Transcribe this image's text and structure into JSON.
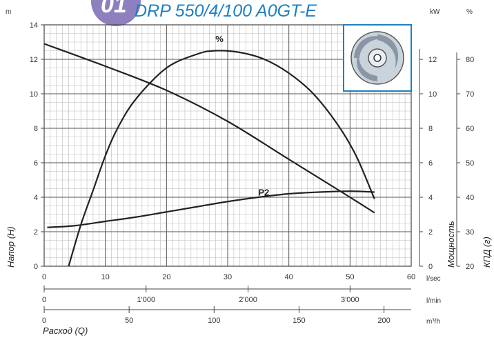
{
  "header": {
    "badge_text": "01",
    "title": "DRP 550/4/100 A0GT-E"
  },
  "colors": {
    "title": "#1e7fc4",
    "badge": "#8e7fbf",
    "curve": "#222222",
    "grid_major": "#555555",
    "grid_minor": "#bbbbbb",
    "impeller_frame": "#1e7fc4"
  },
  "icons": {
    "impeller": "pump-impeller-icon"
  },
  "chart_data": {
    "type": "line",
    "title": "DRP 550/4/100 A0GT-E",
    "x": {
      "unit": "l/sec",
      "range": [
        0,
        60
      ],
      "ticks": [
        0,
        10,
        20,
        30,
        40,
        50,
        60
      ],
      "label": "Расход (Q)"
    },
    "x_lmin": {
      "unit": "l/min",
      "range": [
        0,
        3600
      ],
      "ticks": [
        0,
        1000,
        2000,
        3000
      ],
      "tick_labels": [
        "0",
        "1'000",
        "2'000",
        "3'000"
      ]
    },
    "x_m3h": {
      "unit": "m³/h",
      "range": [
        0,
        216
      ],
      "ticks": [
        0,
        50,
        100,
        150,
        200
      ]
    },
    "y_head": {
      "unit": "m",
      "range": [
        0,
        14
      ],
      "ticks": [
        0,
        2,
        4,
        6,
        8,
        10,
        12,
        14
      ],
      "label": "Напор (H)"
    },
    "y_power": {
      "unit": "kW",
      "range": [
        0,
        14
      ],
      "ticks": [
        0,
        2,
        4,
        6,
        8,
        10,
        12
      ],
      "label": "Мощность"
    },
    "y_eff": {
      "unit": "%",
      "range": [
        20,
        90
      ],
      "ticks": [
        20,
        30,
        40,
        50,
        60,
        70,
        80
      ],
      "label": "КПД (г)"
    },
    "grid": true,
    "series": [
      {
        "axis": "head",
        "points": [
          [
            0,
            12.9
          ],
          [
            10,
            11.6
          ],
          [
            20,
            10.2
          ],
          [
            30,
            8.4
          ],
          [
            40,
            6.2
          ],
          [
            50,
            4.0
          ],
          [
            54,
            3.1
          ]
        ]
      },
      {
        "name": "%",
        "axis": "eff",
        "points": [
          [
            4,
            20
          ],
          [
            6,
            32
          ],
          [
            8,
            42
          ],
          [
            10,
            52
          ],
          [
            12,
            60
          ],
          [
            15,
            68.5
          ],
          [
            20,
            77.5
          ],
          [
            25,
            81.5
          ],
          [
            28,
            82.5
          ],
          [
            32,
            82
          ],
          [
            36,
            80
          ],
          [
            40,
            76
          ],
          [
            44,
            70
          ],
          [
            48,
            61
          ],
          [
            51,
            52
          ],
          [
            54,
            39.5
          ]
        ]
      },
      {
        "name": "P2",
        "axis": "power",
        "points": [
          [
            0.5,
            2.25
          ],
          [
            5,
            2.35
          ],
          [
            10,
            2.6
          ],
          [
            15,
            2.85
          ],
          [
            20,
            3.15
          ],
          [
            25,
            3.45
          ],
          [
            30,
            3.75
          ],
          [
            35,
            4.0
          ],
          [
            40,
            4.2
          ],
          [
            45,
            4.3
          ],
          [
            50,
            4.35
          ],
          [
            54,
            4.3
          ]
        ]
      }
    ],
    "annotations": [
      {
        "text": "%",
        "x": 28,
        "y_eff": 85
      },
      {
        "text": "P2",
        "x": 35,
        "y_power": 4.1
      }
    ]
  }
}
